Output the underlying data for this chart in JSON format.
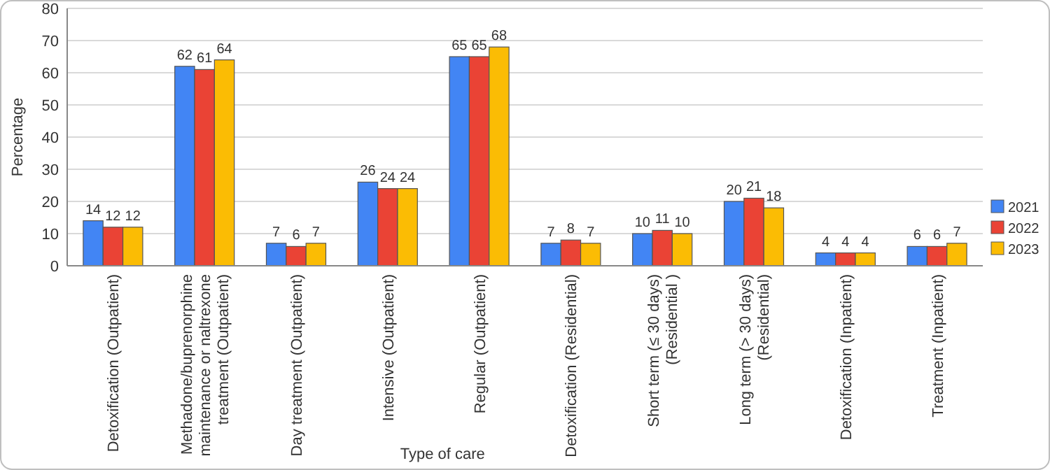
{
  "chart_data": {
    "type": "bar",
    "xlabel": "Type of care",
    "ylabel": "Percentage",
    "categories": [
      "Detoxification (Outpatient)",
      "Methadone/buprenorphine maintenance or naltrexone treatment (Outpatient)",
      "Day treatment  (Outpatient)",
      "Intensive (Outpatient)",
      "Regular (Outpatient)",
      "Detoxification (Residential)",
      "Short term (≤ 30 days) (Residential )",
      "Long term (> 30 days) (Residential)",
      "Detoxification (Inpatient)",
      "Treatment (Inpatient)"
    ],
    "series": [
      {
        "name": "2021",
        "color": "#4285f4",
        "values": [
          14,
          62,
          7,
          26,
          65,
          7,
          10,
          20,
          4,
          6
        ]
      },
      {
        "name": "2022",
        "color": "#ea4335",
        "values": [
          12,
          61,
          6,
          24,
          65,
          8,
          11,
          21,
          4,
          6
        ]
      },
      {
        "name": "2023",
        "color": "#fbbc04",
        "values": [
          12,
          64,
          7,
          24,
          68,
          7,
          10,
          18,
          4,
          7
        ]
      }
    ],
    "ylim": [
      0,
      80
    ],
    "yticks": [
      0,
      10,
      20,
      30,
      40,
      50,
      60,
      70,
      80
    ],
    "grid": "y",
    "legend": "right",
    "data_labels": true
  }
}
